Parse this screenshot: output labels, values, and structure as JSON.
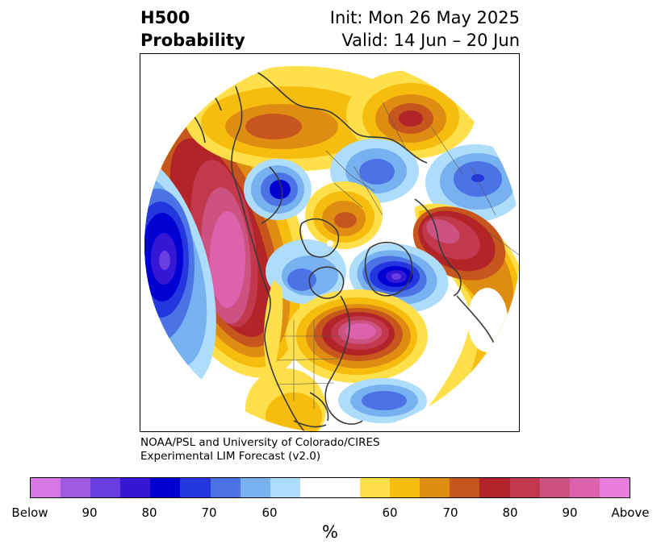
{
  "header": {
    "variable": "H500",
    "product": "Probability",
    "init": "Init: Mon 26 May 2025",
    "valid": "Valid: 14 Jun – 20 Jun"
  },
  "credit": {
    "line1": "NOAA/PSL and University of Colorado/CIRES",
    "line2": "Experimental LIM Forecast (v2.0)"
  },
  "colorbar": {
    "colors": [
      "#d977e8",
      "#a05ae1",
      "#6a3de0",
      "#3418d6",
      "#0000d2",
      "#2437df",
      "#4b73e6",
      "#77b1f0",
      "#aedcfb",
      "#ffffff",
      "#ffffff",
      "#ffe04a",
      "#f6bd0f",
      "#df8c12",
      "#c6561d",
      "#b22427",
      "#c2384d",
      "#cc5282",
      "#dd62ad",
      "#e87ddc"
    ],
    "labels": [
      "Below",
      "90",
      "80",
      "70",
      "60",
      "60",
      "70",
      "80",
      "90",
      "Above"
    ],
    "unit": "%"
  },
  "map": {
    "projection": "north-polar-stereographic",
    "field": "500-hPa height probability",
    "anomalies": [
      {
        "region": "North Pacific",
        "sign": "above",
        "peak_class": "90"
      },
      {
        "region": "Central Pacific",
        "sign": "below",
        "peak_class": "90"
      },
      {
        "region": "Siberia / Far East",
        "sign": "above",
        "peak_class": "80"
      },
      {
        "region": "East Siberia",
        "sign": "below",
        "peak_class": "80"
      },
      {
        "region": "Arctic",
        "sign": "above",
        "peak_class": "70"
      },
      {
        "region": "Eurasia (NW)",
        "sign": "below",
        "peak_class": "70"
      },
      {
        "region": "Greenland / Baffin",
        "sign": "below",
        "peak_class": "90"
      },
      {
        "region": "Scandinavia / NW Russia",
        "sign": "above",
        "peak_class": "90"
      },
      {
        "region": "Eastern North America / Great Lakes",
        "sign": "above",
        "peak_class": "Above"
      },
      {
        "region": "Subtropical Atlantic",
        "sign": "below",
        "peak_class": "70"
      }
    ]
  }
}
